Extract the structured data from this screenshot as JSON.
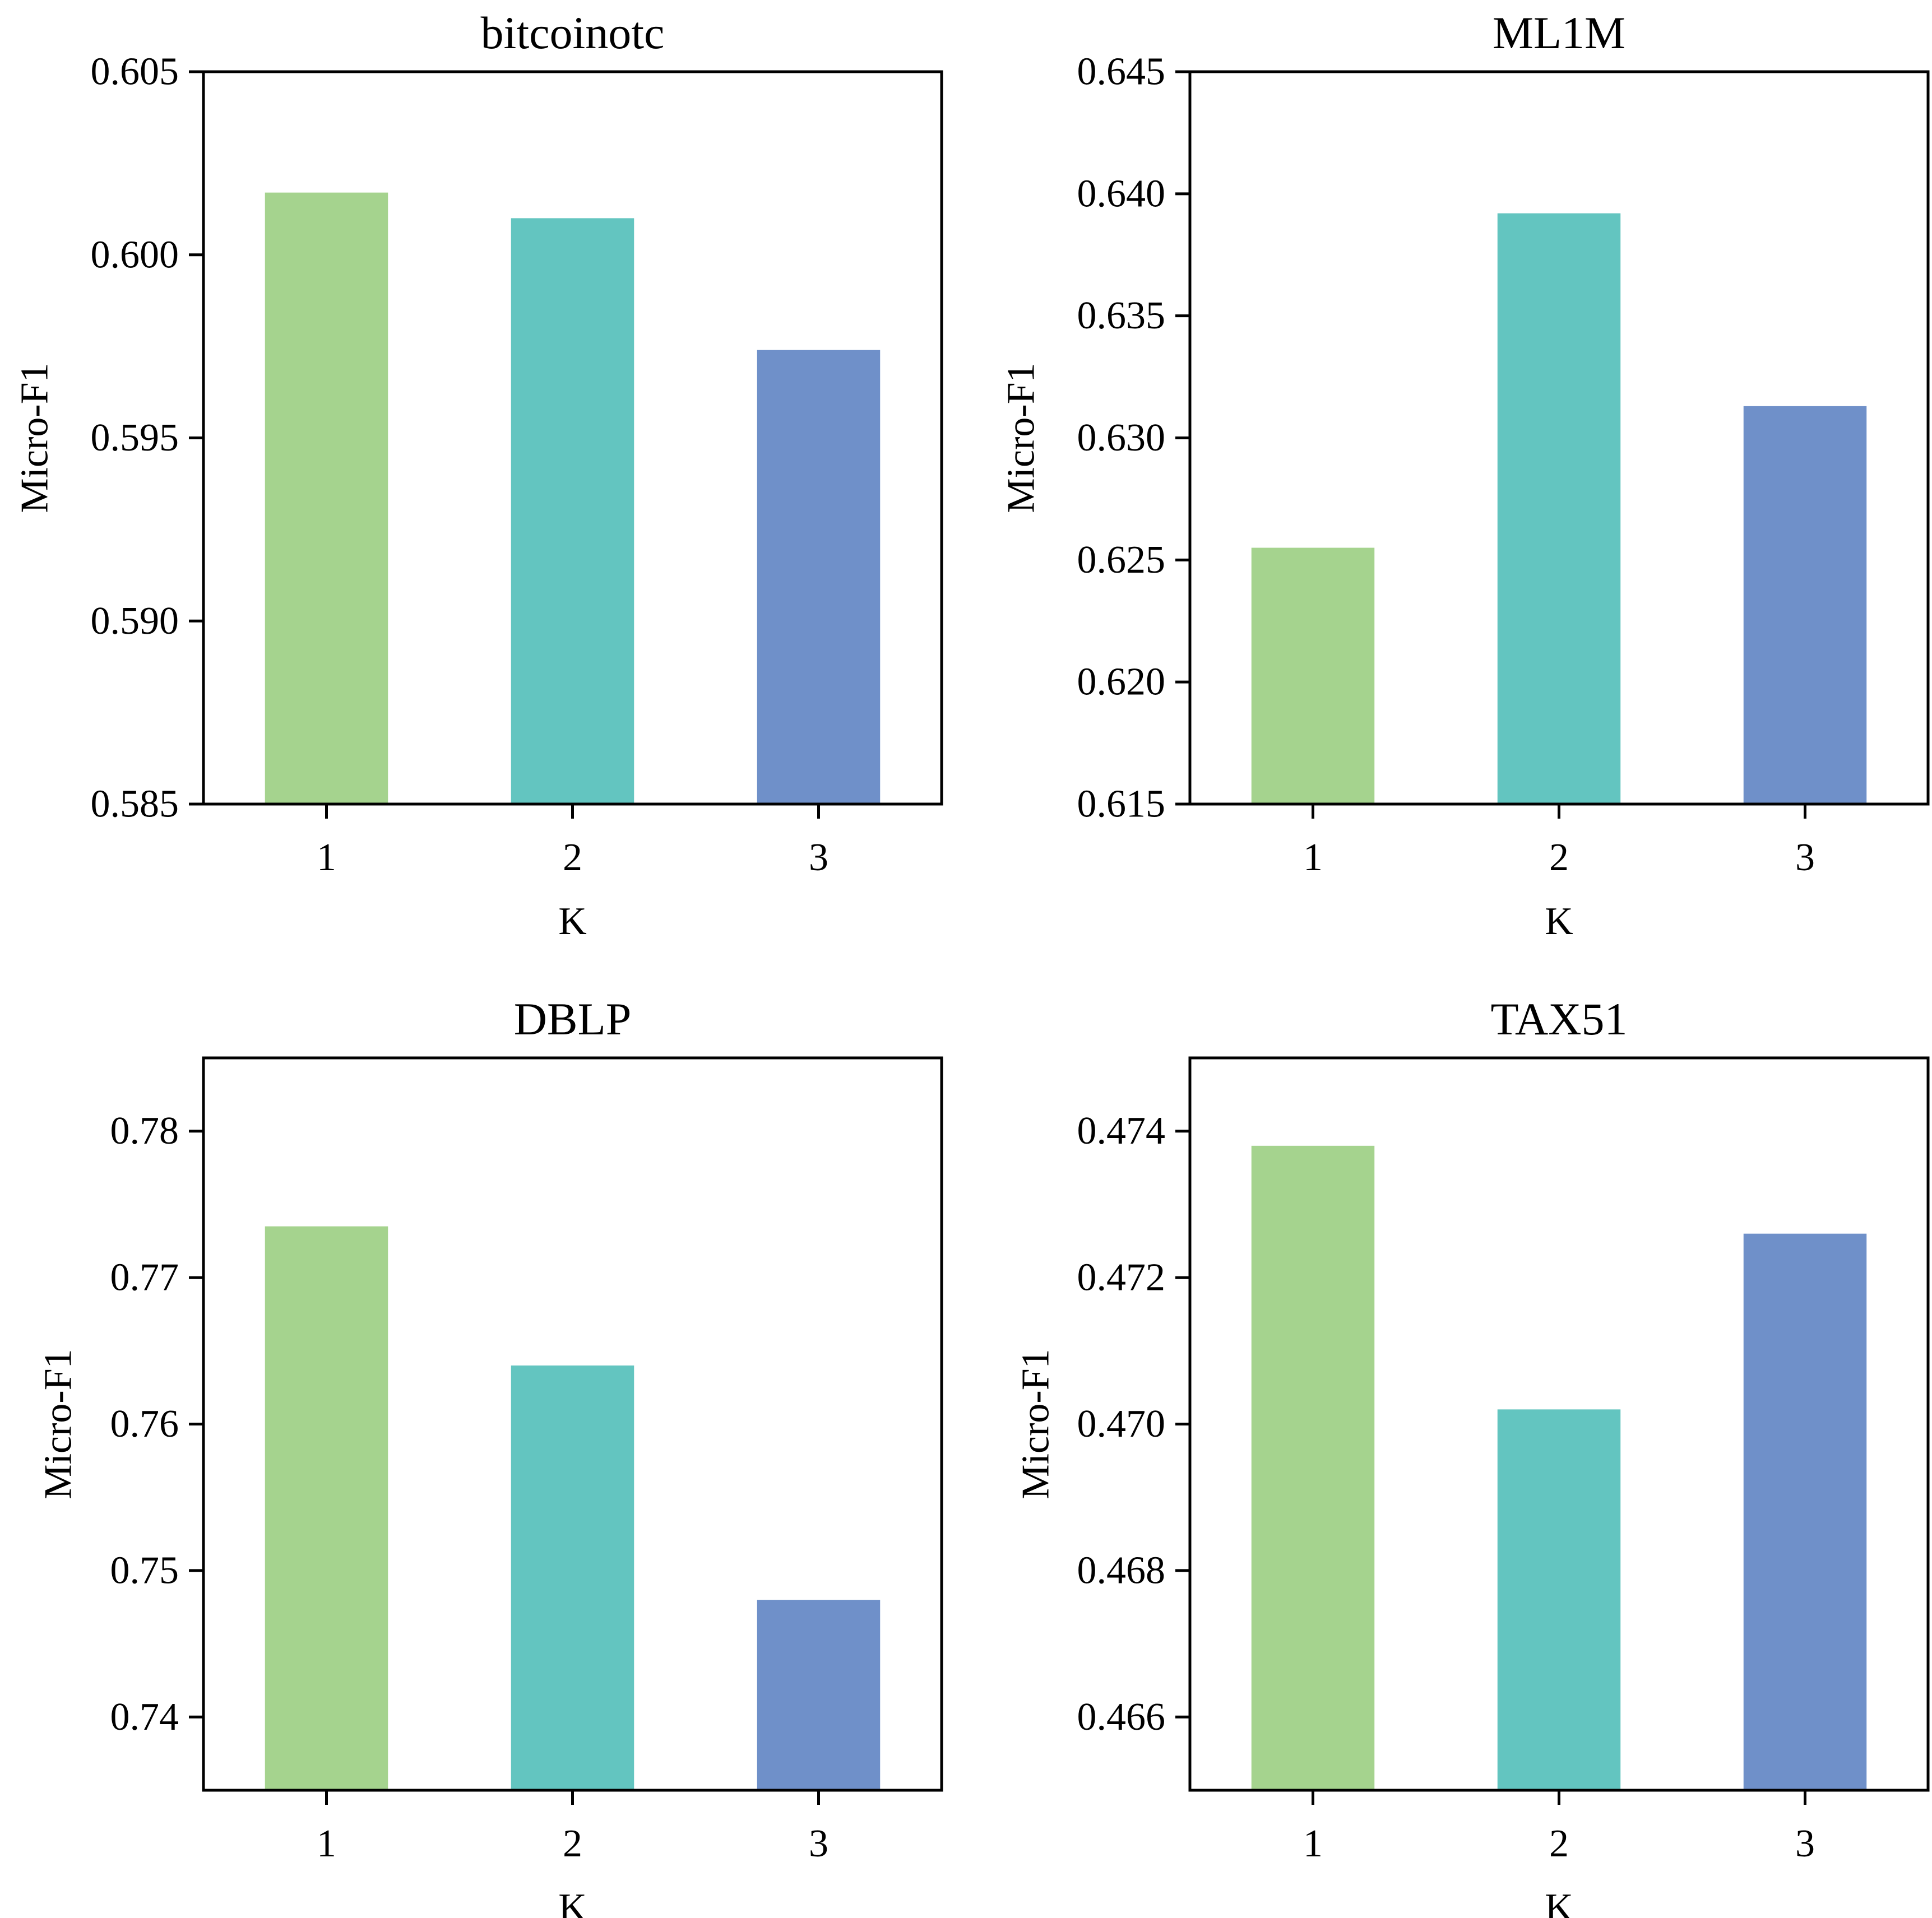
{
  "colors": {
    "bar_k1": "#a5d38e",
    "bar_k2": "#63c5c0",
    "bar_k3": "#6f90c9",
    "axis": "#000000"
  },
  "chart_data": [
    {
      "type": "bar",
      "title": "bitcoinotc",
      "xlabel": "K",
      "ylabel": "Micro-F1",
      "categories": [
        "1",
        "2",
        "3"
      ],
      "values": [
        0.6017,
        0.601,
        0.5974
      ],
      "ylim": [
        0.585,
        0.605
      ],
      "yticks": [
        0.585,
        0.59,
        0.595,
        0.6,
        0.605
      ],
      "ytick_labels": [
        "0.585",
        "0.590",
        "0.595",
        "0.600",
        "0.605"
      ],
      "grid": false
    },
    {
      "type": "bar",
      "title": "ML1M",
      "xlabel": "K",
      "ylabel": "Micro-F1",
      "categories": [
        "1",
        "2",
        "3"
      ],
      "values": [
        0.6255,
        0.6392,
        0.6313
      ],
      "ylim": [
        0.615,
        0.645
      ],
      "yticks": [
        0.615,
        0.62,
        0.625,
        0.63,
        0.635,
        0.64,
        0.645
      ],
      "ytick_labels": [
        "0.615",
        "0.620",
        "0.625",
        "0.630",
        "0.635",
        "0.640",
        "0.645"
      ],
      "grid": false
    },
    {
      "type": "bar",
      "title": "DBLP",
      "xlabel": "K",
      "ylabel": "Micro-F1",
      "categories": [
        "1",
        "2",
        "3"
      ],
      "values": [
        0.7735,
        0.764,
        0.748
      ],
      "ylim": [
        0.735,
        0.785
      ],
      "yticks": [
        0.74,
        0.75,
        0.76,
        0.77,
        0.78
      ],
      "ytick_labels": [
        "0.74",
        "0.75",
        "0.76",
        "0.77",
        "0.78"
      ],
      "grid": false
    },
    {
      "type": "bar",
      "title": "TAX51",
      "xlabel": "K",
      "ylabel": "Micro-F1",
      "categories": [
        "1",
        "2",
        "3"
      ],
      "values": [
        0.4738,
        0.4702,
        0.4726
      ],
      "ylim": [
        0.465,
        0.475
      ],
      "yticks": [
        0.466,
        0.468,
        0.47,
        0.472,
        0.474
      ],
      "ytick_labels": [
        "0.466",
        "0.468",
        "0.470",
        "0.472",
        "0.474"
      ],
      "grid": false
    }
  ]
}
